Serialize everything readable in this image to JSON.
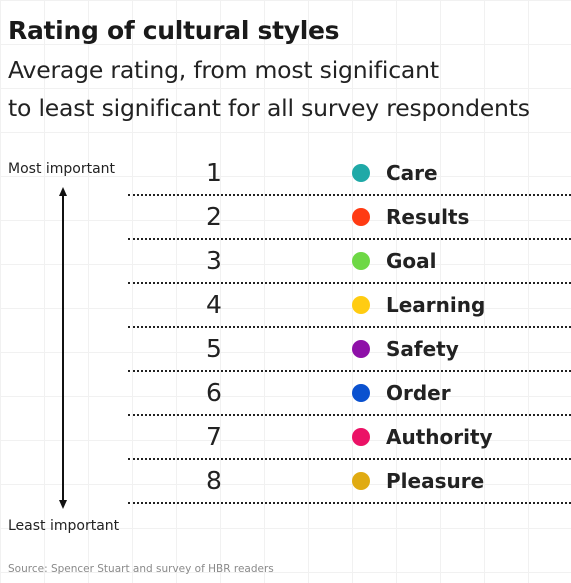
{
  "chart_data": {
    "type": "table",
    "title": "Rating of cultural styles",
    "subtitle_lines": [
      "Average rating, from most significant",
      "to least significant for all survey respondents"
    ],
    "axis_top_label": "Most important",
    "axis_bottom_label": "Least important",
    "items": [
      {
        "rank": "1",
        "label": "Care",
        "color": "#1fa9a7"
      },
      {
        "rank": "2",
        "label": "Results",
        "color": "#ff3b13"
      },
      {
        "rank": "3",
        "label": "Goal",
        "color": "#6ed845"
      },
      {
        "rank": "4",
        "label": "Learning",
        "color": "#ffcc12"
      },
      {
        "rank": "5",
        "label": "Safety",
        "color": "#8e10a8"
      },
      {
        "rank": "6",
        "label": "Order",
        "color": "#0a51cf"
      },
      {
        "rank": "7",
        "label": "Authority",
        "color": "#eb1266"
      },
      {
        "rank": "8",
        "label": "Pleasure",
        "color": "#e0ab12"
      }
    ],
    "source": "Source: Spencer Stuart and survey of HBR readers"
  }
}
